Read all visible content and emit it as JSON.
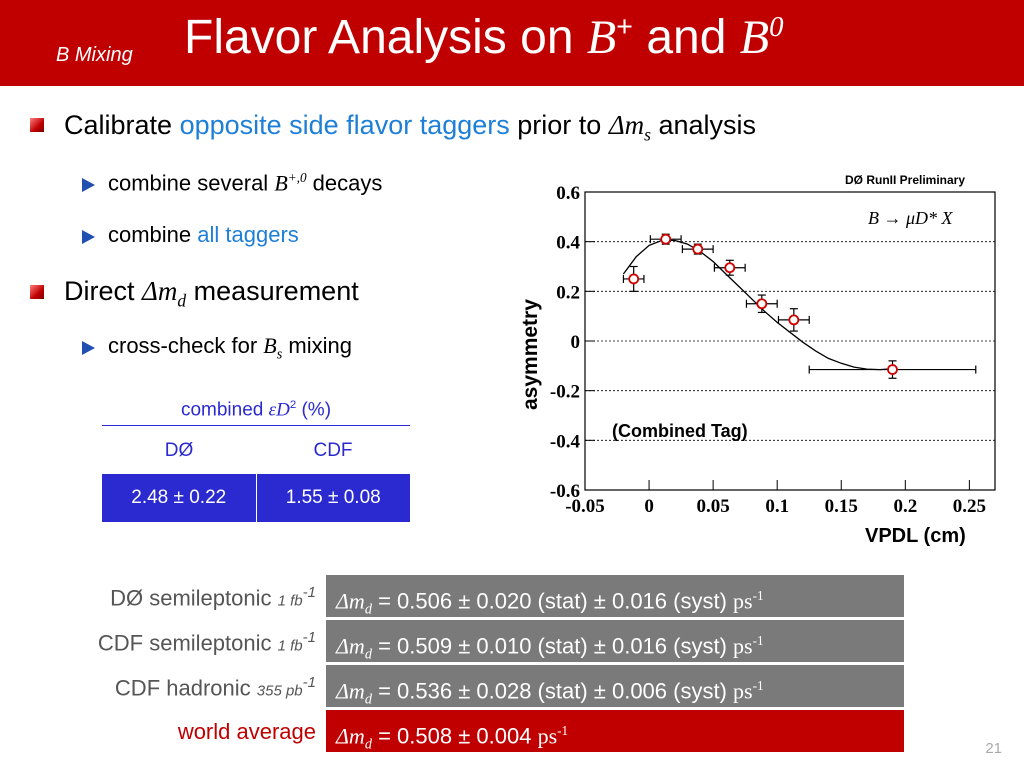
{
  "header": {
    "section": "B Mixing",
    "title_prefix": "Flavor Analysis on ",
    "title_b": "B",
    "title_plus": "+",
    "title_and": " and ",
    "title_b0": "B",
    "title_zero": "0"
  },
  "bullets": {
    "b1_pre": "Calibrate ",
    "b1_link": "opposite side flavor taggers",
    "b1_post": " prior to ",
    "b1_dm": "Δm",
    "b1_sub": "s",
    "b1_end": " analysis",
    "s1_pre": "combine several ",
    "s1_b": "B",
    "s1_sup": "+,0",
    "s1_post": " decays",
    "s2_pre": "combine ",
    "s2_link": "all taggers",
    "b2_pre": "Direct ",
    "b2_dm": "Δm",
    "b2_sub": "d",
    "b2_post": " measurement",
    "s3_pre": "cross-check for ",
    "s3_b": "B",
    "s3_sub": "s",
    "s3_post": " mixing"
  },
  "combined_table": {
    "caption_pre": "combined ",
    "caption_sym": "εD",
    "caption_sup": "2",
    "caption_post": " (%)",
    "col1": "DØ",
    "col2": "CDF",
    "val1": "2.48 ± 0.22",
    "val2": "1.55 ± 0.08"
  },
  "results": [
    {
      "label": "DØ semileptonic ",
      "lum": "1 fb",
      "lum_sup": "-1",
      "dm": "Δm",
      "sub": "d",
      "value": " = 0.506 ± 0.020 (stat) ± 0.016 (syst) ",
      "unit": "ps",
      "unit_sup": "-1"
    },
    {
      "label": "CDF semileptonic ",
      "lum": "1 fb",
      "lum_sup": "-1",
      "dm": "Δm",
      "sub": "d",
      "value": " = 0.509 ± 0.010 (stat) ± 0.016 (syst) ",
      "unit": "ps",
      "unit_sup": "-1"
    },
    {
      "label": "CDF hadronic ",
      "lum": "355 pb",
      "lum_sup": "-1",
      "dm": "Δm",
      "sub": "d",
      "value": " = 0.536 ± 0.028 (stat) ± 0.006 (syst) ",
      "unit": "ps",
      "unit_sup": "-1"
    },
    {
      "label": "world average",
      "dm": "Δm",
      "sub": "d",
      "value": " = 0.508 ± 0.004 ",
      "unit": "ps",
      "unit_sup": "-1"
    }
  ],
  "colors": {
    "header": "#c00000",
    "accent_blue": "#1e7fd8",
    "table_blue": "#2a2ad0",
    "result_gray": "#7a7a7a",
    "world_red": "#c00000"
  },
  "page_number": "21",
  "chart_data": {
    "type": "scatter",
    "preliminary_label": "DØ RunII Preliminary",
    "process_label": "B → μD* X",
    "annotation": "(Combined Tag)",
    "xlabel": "VPDL (cm)",
    "ylabel": "asymmetry",
    "xlim": [
      -0.05,
      0.27
    ],
    "ylim": [
      -0.6,
      0.6
    ],
    "x_ticks": [
      "-0.05",
      "0",
      "0.05",
      "0.1",
      "0.15",
      "0.2",
      "0.25"
    ],
    "y_ticks": [
      "0.6",
      "0.4",
      "0.2",
      "0",
      "-0.2",
      "-0.4",
      "-0.6"
    ],
    "gridlines_y": [
      0.4,
      0.2,
      0,
      -0.2,
      -0.4
    ],
    "points": [
      {
        "x": -0.012,
        "y": 0.25,
        "xerr": 0.008,
        "yerr": 0.05
      },
      {
        "x": 0.013,
        "y": 0.41,
        "xerr": 0.012,
        "yerr": 0.02
      },
      {
        "x": 0.038,
        "y": 0.37,
        "xerr": 0.012,
        "yerr": 0.02
      },
      {
        "x": 0.063,
        "y": 0.295,
        "xerr": 0.012,
        "yerr": 0.03
      },
      {
        "x": 0.088,
        "y": 0.15,
        "xerr": 0.012,
        "yerr": 0.035
      },
      {
        "x": 0.113,
        "y": 0.085,
        "xerr": 0.012,
        "yerr": 0.045
      },
      {
        "x": 0.19,
        "y": -0.115,
        "xerr": 0.065,
        "yerr": 0.035
      }
    ],
    "fit_curve": [
      [
        -0.02,
        0.27
      ],
      [
        -0.01,
        0.34
      ],
      [
        0,
        0.385
      ],
      [
        0.01,
        0.405
      ],
      [
        0.02,
        0.405
      ],
      [
        0.03,
        0.39
      ],
      [
        0.04,
        0.36
      ],
      [
        0.05,
        0.32
      ],
      [
        0.06,
        0.27
      ],
      [
        0.07,
        0.22
      ],
      [
        0.08,
        0.17
      ],
      [
        0.09,
        0.12
      ],
      [
        0.1,
        0.075
      ],
      [
        0.11,
        0.035
      ],
      [
        0.12,
        -0.005
      ],
      [
        0.13,
        -0.04
      ],
      [
        0.14,
        -0.07
      ],
      [
        0.15,
        -0.09
      ],
      [
        0.16,
        -0.105
      ],
      [
        0.17,
        -0.113
      ],
      [
        0.18,
        -0.115
      ],
      [
        0.19,
        -0.112
      ]
    ]
  }
}
